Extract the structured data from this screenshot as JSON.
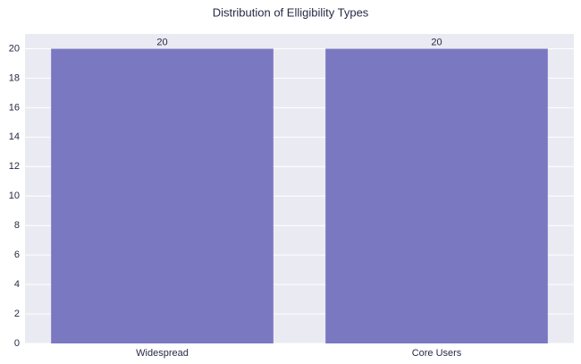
{
  "chart_data": {
    "type": "bar",
    "title": "Distribution of Elligibility Types",
    "categories": [
      "Widespread",
      "Core Users"
    ],
    "values": [
      20,
      20
    ],
    "color": "#7b78c2",
    "ylim": [
      0,
      21
    ],
    "yticks": [
      0,
      2,
      4,
      6,
      8,
      10,
      12,
      14,
      16,
      18,
      20
    ],
    "grid": true
  }
}
